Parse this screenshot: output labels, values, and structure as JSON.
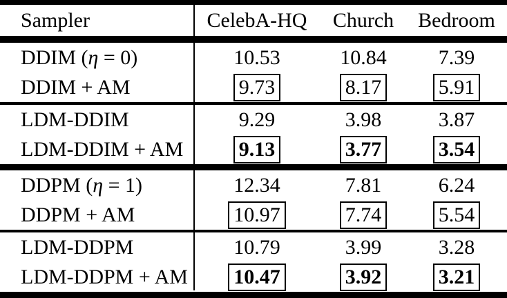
{
  "page": {
    "background_color": "#ffffff",
    "text_color": "#000000"
  },
  "table": {
    "header": {
      "sampler": "Sampler",
      "columns": [
        "CelebA-HQ",
        "Church",
        "Bedroom"
      ]
    },
    "rows": [
      {
        "label": {
          "pre": "DDIM (",
          "math": "η",
          "post": " = 0)"
        },
        "values": [
          {
            "text": "10.53",
            "boxed": false,
            "bold": false
          },
          {
            "text": "10.84",
            "boxed": false,
            "bold": false
          },
          {
            "text": "7.39",
            "boxed": false,
            "bold": false
          }
        ]
      },
      {
        "label": {
          "pre": "DDIM + AM",
          "math": "",
          "post": ""
        },
        "values": [
          {
            "text": "9.73",
            "boxed": true,
            "bold": false
          },
          {
            "text": "8.17",
            "boxed": true,
            "bold": false
          },
          {
            "text": "5.91",
            "boxed": true,
            "bold": false
          }
        ]
      },
      {
        "label": {
          "pre": "LDM-DDIM",
          "math": "",
          "post": ""
        },
        "values": [
          {
            "text": "9.29",
            "boxed": false,
            "bold": false
          },
          {
            "text": "3.98",
            "boxed": false,
            "bold": false
          },
          {
            "text": "3.87",
            "boxed": false,
            "bold": false
          }
        ]
      },
      {
        "label": {
          "pre": "LDM-DDIM + AM",
          "math": "",
          "post": ""
        },
        "values": [
          {
            "text": "9.13",
            "boxed": true,
            "bold": true
          },
          {
            "text": "3.77",
            "boxed": true,
            "bold": true
          },
          {
            "text": "3.54",
            "boxed": true,
            "bold": true
          }
        ]
      },
      {
        "label": {
          "pre": "DDPM (",
          "math": "η",
          "post": " = 1)"
        },
        "values": [
          {
            "text": "12.34",
            "boxed": false,
            "bold": false
          },
          {
            "text": "7.81",
            "boxed": false,
            "bold": false
          },
          {
            "text": "6.24",
            "boxed": false,
            "bold": false
          }
        ]
      },
      {
        "label": {
          "pre": "DDPM + AM",
          "math": "",
          "post": ""
        },
        "values": [
          {
            "text": "10.97",
            "boxed": true,
            "bold": false
          },
          {
            "text": "7.74",
            "boxed": true,
            "bold": false
          },
          {
            "text": "5.54",
            "boxed": true,
            "bold": false
          }
        ]
      },
      {
        "label": {
          "pre": "LDM-DDPM",
          "math": "",
          "post": ""
        },
        "values": [
          {
            "text": "10.79",
            "boxed": false,
            "bold": false
          },
          {
            "text": "3.99",
            "boxed": false,
            "bold": false
          },
          {
            "text": "3.28",
            "boxed": false,
            "bold": false
          }
        ]
      },
      {
        "label": {
          "pre": "LDM-DDPM + AM",
          "math": "",
          "post": ""
        },
        "values": [
          {
            "text": "10.47",
            "boxed": true,
            "bold": true
          },
          {
            "text": "3.92",
            "boxed": true,
            "bold": true
          },
          {
            "text": "3.21",
            "boxed": true,
            "bold": true
          }
        ]
      }
    ]
  }
}
